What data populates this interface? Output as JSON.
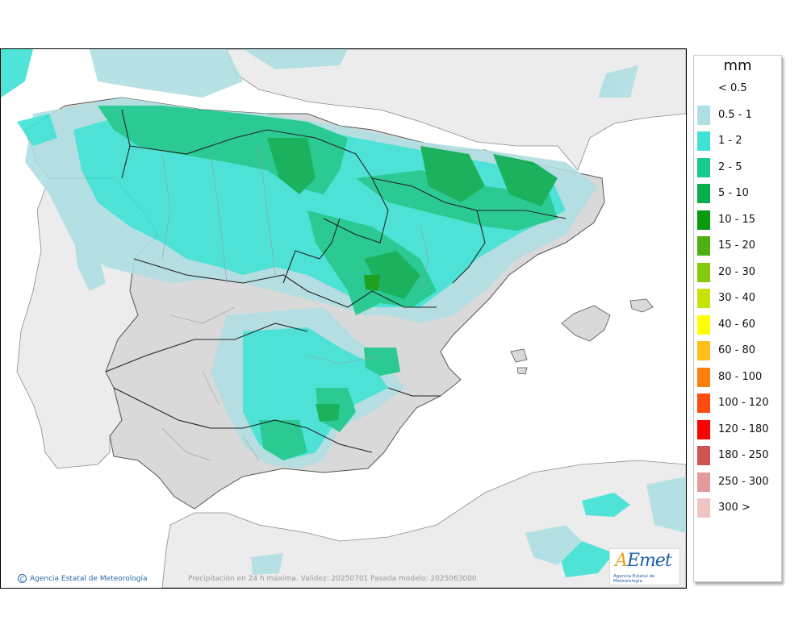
{
  "map": {
    "caption": "Precipitación en 24 h máxima. Validez: 20250701 Pasada modelo: 2025063000",
    "credit": "Agencia Estatal de Meteorología",
    "logo_text": "AEmet",
    "logo_subtext": "Agencia Estatal de Meteorología",
    "colors": {
      "sea": "#ffffff",
      "land": "#d9d9d9",
      "foreign_land": "#ececec",
      "border": "#222222"
    }
  },
  "legend": {
    "title": "mm",
    "items": [
      {
        "label": "< 0.5",
        "color": ""
      },
      {
        "label": "0.5 - 1",
        "color": "#b0dfe3"
      },
      {
        "label": "1 - 2",
        "color": "#3fe3d6"
      },
      {
        "label": "2 - 5",
        "color": "#19c98c"
      },
      {
        "label": "5 - 10",
        "color": "#08ad4f"
      },
      {
        "label": "10 - 15",
        "color": "#0a9a10"
      },
      {
        "label": "15 - 20",
        "color": "#4eaf12"
      },
      {
        "label": "20 - 30",
        "color": "#86c80d"
      },
      {
        "label": "30 - 40",
        "color": "#c6e30a"
      },
      {
        "label": "40 - 60",
        "color": "#ffff00"
      },
      {
        "label": "60 - 80",
        "color": "#ffbf1a"
      },
      {
        "label": "80 - 100",
        "color": "#ff7f0e"
      },
      {
        "label": "100 - 120",
        "color": "#ff4a10"
      },
      {
        "label": "120 - 180",
        "color": "#ff0000"
      },
      {
        "label": "180 - 250",
        "color": "#cf5555"
      },
      {
        "label": "250 - 300",
        "color": "#e29a9a"
      },
      {
        "label": "300 >",
        "color": "#f1c4c4"
      }
    ]
  }
}
